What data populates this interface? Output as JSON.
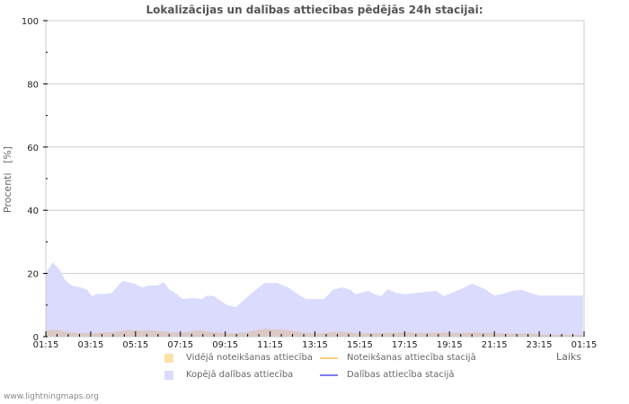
{
  "chart_data": {
    "type": "area",
    "title": "Lokalizācijas un dalības attiecības pēdējās 24h stacijai:",
    "xlabel": "Laiks",
    "ylabel": "Procenti   [%]",
    "ylim": [
      0,
      100
    ],
    "yticks": [
      0,
      20,
      40,
      60,
      80,
      100
    ],
    "yminor_ticks": [
      10,
      30,
      50,
      70,
      90
    ],
    "grid": true,
    "legend_position": "bottom",
    "x_tick_labels": [
      "01:15",
      "03:15",
      "05:15",
      "07:15",
      "09:15",
      "11:15",
      "13:15",
      "15:15",
      "17:15",
      "19:15",
      "21:15",
      "23:15",
      "01:15"
    ],
    "x_hours": [
      0,
      0.3,
      0.6,
      0.85,
      1.15,
      1.55,
      1.85,
      2.05,
      2.3,
      2.6,
      2.95,
      3.3,
      3.45,
      3.65,
      3.95,
      4.3,
      4.6,
      5.0,
      5.25,
      5.5,
      5.85,
      6.1,
      6.35,
      6.65,
      6.95,
      7.2,
      7.5,
      7.75,
      8.1,
      8.5,
      8.8,
      9.2,
      9.5,
      9.75,
      10.3,
      10.8,
      11.2,
      11.6,
      12.0,
      12.4,
      12.8,
      13.2,
      13.6,
      13.8,
      14.4,
      14.6,
      14.95,
      15.25,
      15.6,
      16.0,
      16.6,
      17.0,
      17.4,
      17.75,
      18.1,
      18.5,
      19.0,
      19.6,
      20.0,
      20.4,
      20.8,
      21.2,
      21.7,
      22.0,
      22.5,
      22.8,
      23.3,
      23.6,
      23.95
    ],
    "series": [
      {
        "name": "Kopējā dalības attiecība",
        "kind": "area",
        "color": "#dadbfd",
        "values": [
          20.0,
          23.5,
          21.3,
          18.0,
          16.2,
          15.6,
          14.8,
          12.8,
          13.6,
          13.4,
          13.9,
          16.8,
          17.6,
          17.3,
          16.8,
          15.6,
          16.2,
          16.2,
          17.3,
          15.0,
          13.4,
          11.9,
          12.2,
          12.2,
          11.9,
          13.0,
          12.8,
          11.6,
          9.9,
          9.4,
          11.4,
          13.9,
          15.6,
          17.0,
          17.0,
          15.6,
          13.6,
          11.9,
          11.9,
          11.9,
          14.8,
          15.6,
          14.8,
          13.4,
          14.5,
          13.6,
          12.8,
          15.0,
          13.9,
          13.4,
          13.9,
          14.2,
          14.5,
          12.8,
          13.9,
          15.0,
          16.8,
          15.0,
          13.0,
          13.6,
          14.5,
          14.8,
          13.6,
          13.0,
          13.0,
          13.0,
          13.0,
          13.0,
          13.0
        ]
      },
      {
        "name": "Vidējā noteikšanas attiecība",
        "kind": "area",
        "color": "#dcc9c6",
        "values": [
          1.8,
          2.3,
          2.1,
          1.6,
          1.3,
          1.2,
          1.2,
          1.0,
          1.2,
          1.3,
          1.4,
          1.7,
          1.9,
          2.1,
          2.1,
          1.9,
          2.0,
          1.8,
          1.8,
          1.5,
          1.3,
          1.2,
          1.5,
          1.9,
          1.9,
          1.6,
          1.4,
          1.3,
          1.1,
          1.1,
          1.3,
          1.8,
          2.2,
          2.5,
          2.3,
          2.0,
          1.6,
          1.2,
          1.1,
          1.1,
          1.5,
          1.6,
          1.4,
          1.1,
          1.1,
          1.1,
          1.1,
          1.2,
          1.3,
          1.3,
          1.2,
          1.2,
          1.3,
          1.3,
          1.2,
          1.2,
          1.3,
          1.3,
          1.1,
          1.0,
          1.0,
          1.0,
          1.0,
          0.7,
          0.6,
          0.6,
          0.6,
          0.6,
          0.6
        ]
      },
      {
        "name": "Noteikšanas attiecība stacijā",
        "kind": "line",
        "color": "#fcd17a",
        "values": []
      },
      {
        "name": "Dalības attiecība stacijā",
        "kind": "line",
        "color": "#7b7bf0",
        "values": []
      }
    ]
  },
  "legend": {
    "items": [
      {
        "label": "Vidējā noteikšanas attiecība",
        "type": "swatch",
        "color": "#fde2a8"
      },
      {
        "label": "Noteikšanas attiecība stacijā",
        "type": "line",
        "color": "#fcd17a"
      },
      {
        "label": "Kopējā dalības attiecība",
        "type": "swatch",
        "color": "#dadbfd"
      },
      {
        "label": "Dalības attiecība stacijā",
        "type": "line",
        "color": "#7b7bf0"
      }
    ]
  },
  "footer": {
    "text": "www.lightningmaps.org"
  }
}
